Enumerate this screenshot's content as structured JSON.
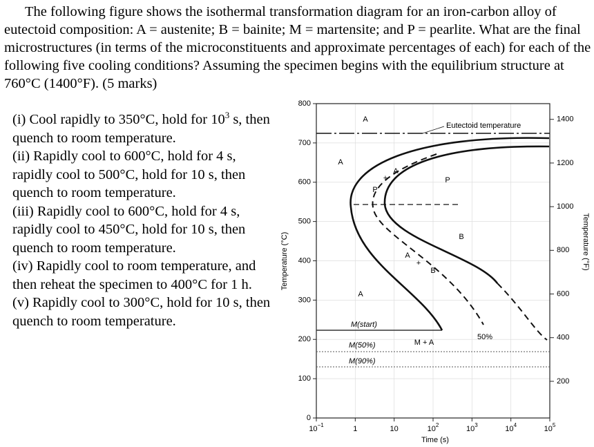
{
  "question": "The following figure shows the isothermal transformation diagram for an iron-carbon alloy of eutectoid composition: A = austenite; B = bainite; M = martensite; and P = pearlite. What are the final microstructures (in terms of the microconstituents and approximate percentages of each) for each of the following five cooling conditions? Assuming the specimen begins with the equilibrium structure at 760°C (1400°F). (5 marks)",
  "items": [
    {
      "before": "(i)   Cool rapidly to 350°C, hold for 10",
      "sup": "3",
      "after": " s, then quench to room temperature."
    },
    "(ii) Rapidly cool to 600°C, hold for 4 s, rapidly cool to 500°C, hold for 10 s, then quench to room temperature.",
    "(iii) Rapidly cool to 600°C, hold for 4 s, rapidly cool to 450°C, hold for 10 s, then quench to room temperature.",
    "(iv) Rapidly cool to room temperature, and then reheat the specimen to 400°C for 1 h.",
    "(v)  Rapidly cool to 300°C, hold for 10 s, then quench to room temperature."
  ],
  "figure": {
    "ylabel": "Temperature (°C)",
    "y2label": "Temperature (°F)",
    "xlabel": "Time (s)",
    "ylim": [
      0,
      800
    ],
    "yticks": [
      0,
      100,
      200,
      300,
      400,
      500,
      600,
      700,
      800
    ],
    "y2lim": [
      32,
      1472
    ],
    "y2ticks": [
      200,
      400,
      600,
      800,
      1000,
      1200,
      1400
    ],
    "xlim": [
      0.1,
      100000
    ],
    "log_x": true,
    "grid": true,
    "xticks": [
      {
        "value": 0.1,
        "label": "10",
        "sup": "−1"
      },
      1,
      10,
      {
        "value": 100,
        "label": "10",
        "sup": "2"
      },
      {
        "value": 1000,
        "label": "10",
        "sup": "3"
      },
      {
        "value": 10000,
        "label": "10",
        "sup": "4"
      },
      {
        "value": 100000,
        "label": "10",
        "sup": "5"
      }
    ],
    "annotations": [
      "A",
      "Eutectoid temperature",
      "A",
      "P",
      "B",
      "A",
      "M(start)",
      "M + A",
      "50%",
      "M(50%)",
      "M(90%)",
      "+",
      "A",
      "P",
      "A",
      "+",
      "B"
    ]
  }
}
